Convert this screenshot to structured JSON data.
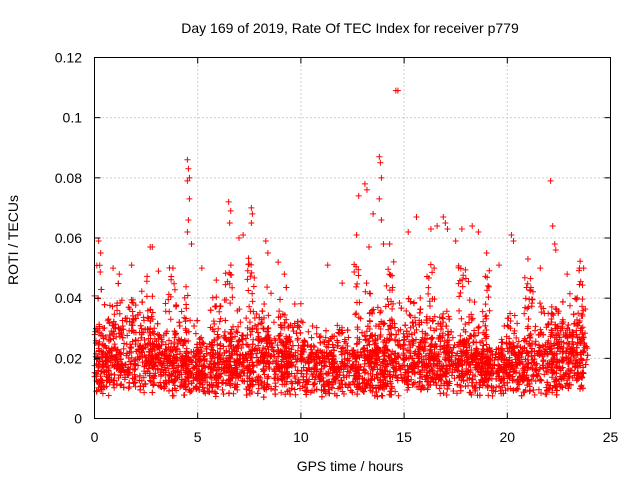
{
  "chart_data": {
    "type": "scatter",
    "title": "Day 169 of 2019, Rate Of TEC Index for receiver p779",
    "xlabel": "GPS time / hours",
    "ylabel": "ROTI / TECUs",
    "xlim": [
      0,
      25
    ],
    "ylim": [
      0,
      0.12
    ],
    "x_ticks": [
      0,
      5,
      10,
      15,
      20,
      25
    ],
    "y_ticks": [
      0,
      0.02,
      0.04,
      0.06,
      0.08,
      0.1,
      0.12
    ],
    "x_tick_labels": [
      "0",
      "5",
      "10",
      "15",
      "20",
      "25"
    ],
    "y_tick_labels": [
      "0",
      "0.02",
      "0.04",
      "0.06",
      "0.08",
      "0.1",
      "0.12"
    ],
    "grid": true,
    "marker": "+",
    "color": "#ff0000",
    "series": [
      {
        "name": "ROTI",
        "dense_band": {
          "x_range": [
            0,
            23.9
          ],
          "y_range": [
            0.004,
            0.04
          ],
          "note": "continuous dense band of points across the full day"
        },
        "points": [
          {
            "x": 0.2,
            "y": 0.059
          },
          {
            "x": 0.3,
            "y": 0.055
          },
          {
            "x": 0.9,
            "y": 0.05
          },
          {
            "x": 1.2,
            "y": 0.048
          },
          {
            "x": 1.8,
            "y": 0.051
          },
          {
            "x": 2.7,
            "y": 0.057
          },
          {
            "x": 2.8,
            "y": 0.057
          },
          {
            "x": 3.1,
            "y": 0.049
          },
          {
            "x": 3.8,
            "y": 0.05
          },
          {
            "x": 4.5,
            "y": 0.086
          },
          {
            "x": 4.55,
            "y": 0.083
          },
          {
            "x": 4.6,
            "y": 0.08
          },
          {
            "x": 4.5,
            "y": 0.079
          },
          {
            "x": 4.6,
            "y": 0.073
          },
          {
            "x": 4.55,
            "y": 0.066
          },
          {
            "x": 4.5,
            "y": 0.062
          },
          {
            "x": 4.7,
            "y": 0.058
          },
          {
            "x": 5.2,
            "y": 0.05
          },
          {
            "x": 5.9,
            "y": 0.046
          },
          {
            "x": 6.5,
            "y": 0.072
          },
          {
            "x": 6.6,
            "y": 0.069
          },
          {
            "x": 6.55,
            "y": 0.065
          },
          {
            "x": 7.0,
            "y": 0.06
          },
          {
            "x": 7.2,
            "y": 0.061
          },
          {
            "x": 7.6,
            "y": 0.07
          },
          {
            "x": 7.65,
            "y": 0.068
          },
          {
            "x": 7.6,
            "y": 0.065
          },
          {
            "x": 8.3,
            "y": 0.059
          },
          {
            "x": 8.4,
            "y": 0.055
          },
          {
            "x": 8.9,
            "y": 0.052
          },
          {
            "x": 9.2,
            "y": 0.048
          },
          {
            "x": 11.3,
            "y": 0.051
          },
          {
            "x": 12.0,
            "y": 0.045
          },
          {
            "x": 12.7,
            "y": 0.061
          },
          {
            "x": 12.8,
            "y": 0.074
          },
          {
            "x": 13.1,
            "y": 0.078
          },
          {
            "x": 13.2,
            "y": 0.076
          },
          {
            "x": 13.3,
            "y": 0.057
          },
          {
            "x": 13.5,
            "y": 0.068
          },
          {
            "x": 13.8,
            "y": 0.087
          },
          {
            "x": 13.85,
            "y": 0.085
          },
          {
            "x": 13.9,
            "y": 0.08
          },
          {
            "x": 13.8,
            "y": 0.073
          },
          {
            "x": 13.9,
            "y": 0.066
          },
          {
            "x": 14.0,
            "y": 0.058
          },
          {
            "x": 14.3,
            "y": 0.058
          },
          {
            "x": 14.6,
            "y": 0.109
          },
          {
            "x": 14.7,
            "y": 0.109
          },
          {
            "x": 15.2,
            "y": 0.062
          },
          {
            "x": 15.6,
            "y": 0.067
          },
          {
            "x": 16.3,
            "y": 0.063
          },
          {
            "x": 16.6,
            "y": 0.064
          },
          {
            "x": 16.9,
            "y": 0.067
          },
          {
            "x": 17.0,
            "y": 0.065
          },
          {
            "x": 17.1,
            "y": 0.063
          },
          {
            "x": 17.5,
            "y": 0.059
          },
          {
            "x": 17.8,
            "y": 0.063
          },
          {
            "x": 18.3,
            "y": 0.064
          },
          {
            "x": 18.6,
            "y": 0.062
          },
          {
            "x": 19.0,
            "y": 0.055
          },
          {
            "x": 19.6,
            "y": 0.051
          },
          {
            "x": 20.2,
            "y": 0.061
          },
          {
            "x": 20.3,
            "y": 0.059
          },
          {
            "x": 21.0,
            "y": 0.053
          },
          {
            "x": 21.6,
            "y": 0.05
          },
          {
            "x": 22.1,
            "y": 0.079
          },
          {
            "x": 22.2,
            "y": 0.064
          },
          {
            "x": 22.3,
            "y": 0.058
          },
          {
            "x": 22.35,
            "y": 0.056
          },
          {
            "x": 22.9,
            "y": 0.048
          },
          {
            "x": 23.5,
            "y": 0.05
          },
          {
            "x": 23.7,
            "y": 0.05
          }
        ]
      }
    ]
  }
}
